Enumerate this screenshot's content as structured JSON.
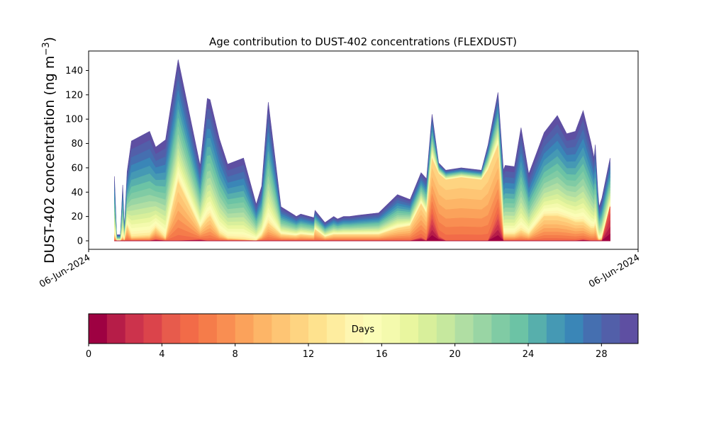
{
  "chart_data": {
    "type": "area",
    "title": "Age contribution to DUST-402 concentrations (FLEXDUST)",
    "ylabel": "DUST-402 concentration (ng m",
    "ylabel_unit_exp": "−3",
    "ylabel_close": ")",
    "ylim": [
      -7,
      156
    ],
    "yticks": [
      0,
      20,
      40,
      60,
      80,
      100,
      120,
      140
    ],
    "xlim": [
      0,
      1
    ],
    "xtick_labels": [
      "06-Jun-2024",
      "06-Jun-2024"
    ],
    "x": [
      0.047,
      0.051,
      0.058,
      0.062,
      0.065,
      0.07,
      0.078,
      0.111,
      0.122,
      0.14,
      0.163,
      0.203,
      0.216,
      0.221,
      0.238,
      0.253,
      0.282,
      0.305,
      0.315,
      0.327,
      0.35,
      0.375,
      0.378,
      0.386,
      0.41,
      0.412,
      0.43,
      0.446,
      0.453,
      0.464,
      0.475,
      0.49,
      0.528,
      0.562,
      0.585,
      0.605,
      0.615,
      0.625,
      0.637,
      0.65,
      0.678,
      0.715,
      0.727,
      0.745,
      0.755,
      0.758,
      0.775,
      0.787,
      0.801,
      0.829,
      0.853,
      0.87,
      0.886,
      0.9,
      0.914,
      0.92,
      0.922,
      0.927,
      0.929,
      0.934,
      0.949
    ],
    "total": [
      53,
      5,
      5,
      46,
      10,
      57,
      82,
      90,
      77,
      83,
      149,
      62,
      117,
      116,
      84,
      63,
      68,
      30,
      45,
      114,
      28,
      21,
      20,
      22,
      19,
      25,
      15,
      20,
      18,
      20,
      20,
      21,
      23,
      38,
      34,
      56,
      51,
      104,
      64,
      58,
      60,
      58,
      79,
      122,
      58,
      62,
      61,
      93,
      55,
      89,
      103,
      88,
      90,
      107,
      81,
      68,
      79,
      40,
      28,
      35,
      68
    ],
    "fresh": [
      0,
      0,
      0,
      0,
      0,
      0,
      0,
      0,
      1,
      0,
      0,
      1,
      0,
      0,
      0,
      0,
      0,
      0,
      0,
      0,
      0,
      0,
      0,
      0,
      0,
      0,
      0,
      0,
      0,
      0,
      0,
      0,
      0,
      0,
      0,
      3,
      0,
      22,
      4,
      0,
      0,
      0,
      0,
      22,
      0,
      0,
      0,
      0,
      0,
      0,
      0,
      0,
      0,
      1,
      0,
      0,
      0,
      0,
      0,
      0,
      28
    ],
    "mid": [
      5,
      0,
      0,
      3,
      0,
      12,
      3,
      4,
      10,
      2,
      48,
      10,
      18,
      20,
      6,
      2,
      1,
      0,
      4,
      14,
      5,
      4,
      4,
      5,
      4,
      9,
      3,
      5,
      5,
      5,
      5,
      5,
      5,
      10,
      12,
      30,
      22,
      67,
      55,
      50,
      52,
      50,
      58,
      78,
      5,
      5,
      5,
      8,
      5,
      20,
      20,
      18,
      15,
      15,
      10,
      10,
      12,
      2,
      1,
      2,
      10
    ],
    "colorbar": {
      "label": "Days",
      "min": 0,
      "max": 30,
      "ticks": [
        0,
        4,
        8,
        12,
        16,
        20,
        24,
        28
      ],
      "colors": [
        "#9e0142",
        "#b61d48",
        "#cc334c",
        "#db444b",
        "#e75b4c",
        "#f26b48",
        "#f57c4a",
        "#f98e52",
        "#fba25b",
        "#fdb567",
        "#fec574",
        "#fed481",
        "#fee28e",
        "#feed9f",
        "#fef6b1",
        "#fbfdb7",
        "#f4faad",
        "#e9f69f",
        "#d8ef9b",
        "#c6e89e",
        "#b0dea3",
        "#99d5a4",
        "#80cba4",
        "#6cc3a5",
        "#57afac",
        "#4599b4",
        "#3a86b7",
        "#456fb0",
        "#525fa9",
        "#5e4fa2"
      ]
    }
  }
}
